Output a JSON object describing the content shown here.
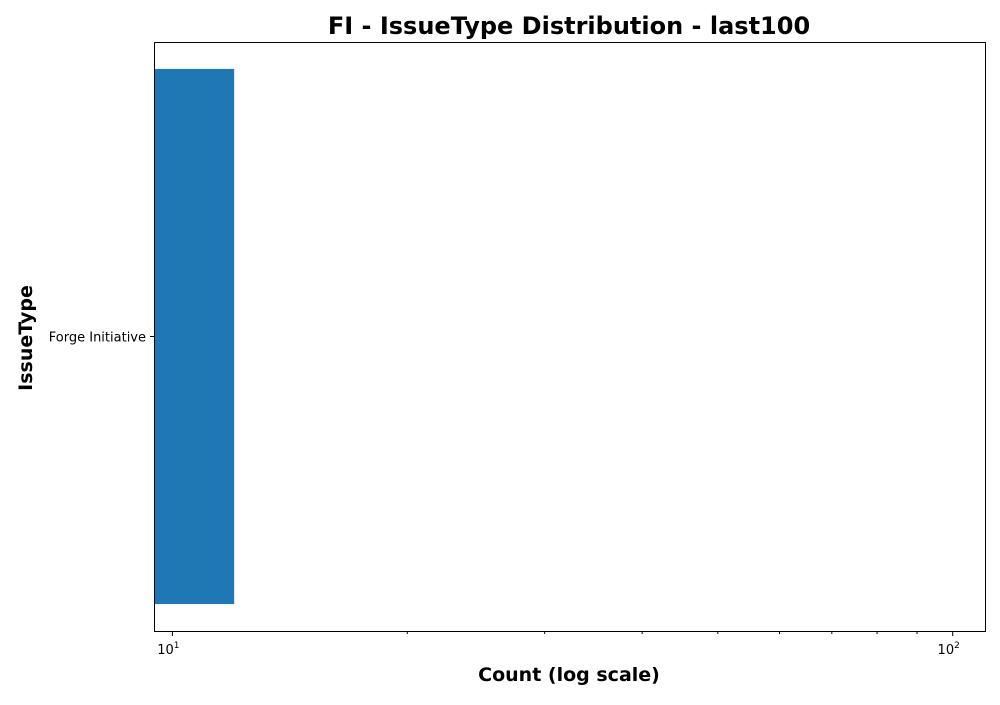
{
  "chart_data": {
    "type": "bar",
    "orientation": "horizontal",
    "title": "FI - IssueType Distribution - last100",
    "xlabel": "Count (log scale)",
    "ylabel": "IssueType",
    "x_scale": "log",
    "xlim": [
      9.5,
      110
    ],
    "categories": [
      "Forge Initiative"
    ],
    "values": [
      12
    ],
    "x_ticks": [
      {
        "value": 10,
        "base": "10",
        "exponent": "1"
      },
      {
        "value": 100,
        "base": "10",
        "exponent": "2"
      }
    ],
    "minor_x_ticks": [
      20,
      30,
      40,
      50,
      60,
      70,
      80,
      90
    ],
    "grid": false,
    "legend": "none",
    "colors": {
      "bar": "#1f77b4",
      "axis": "#000000",
      "background": "#ffffff"
    }
  }
}
